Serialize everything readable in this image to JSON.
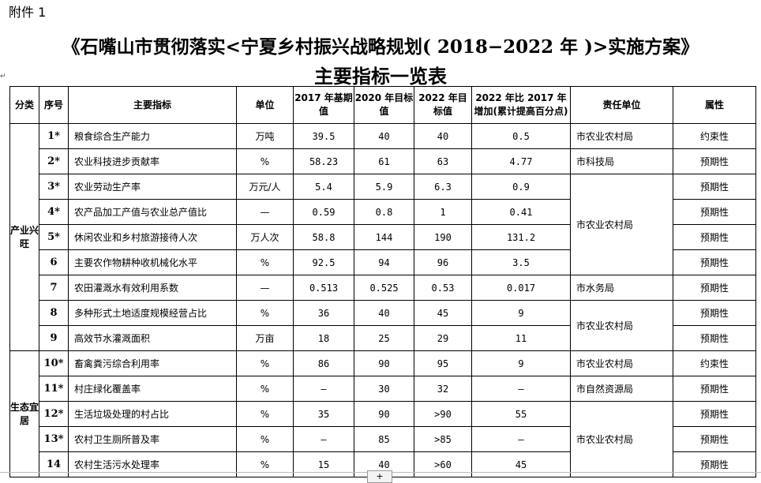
{
  "attachment": "附件 1",
  "title_line1": "《石嘴山市贯彻落实<宁夏乡村振兴战略规划( 2018−2022 年 )>实施方案》",
  "title_line2": "主要指标一览表",
  "headers": {
    "category": "分类",
    "seq": "序号",
    "indicator": "主要指标",
    "unit": "单位",
    "base2017": "2017 年基期值",
    "target2020": "2020 年目标值",
    "target2022": "2022 年目标值",
    "increase": "2022 年比 2017 年增加(累计提高百分点)",
    "dept": "责任单位",
    "attr": "属性"
  },
  "categories": [
    "产业兴旺",
    "生态宜居"
  ],
  "rows": [
    {
      "seq": "1*",
      "name": "粮食综合生产能力",
      "unit": "万吨",
      "v2017": "39.5",
      "v2020": "40",
      "v2022": "40",
      "inc": "0.5",
      "dept": "市农业农村局",
      "attr": "约束性"
    },
    {
      "seq": "2*",
      "name": "农业科技进步贡献率",
      "unit": "%",
      "v2017": "58.23",
      "v2020": "61",
      "v2022": "63",
      "inc": "4.77",
      "dept": "市科技局",
      "attr": "预期性"
    },
    {
      "seq": "3*",
      "name": "农业劳动生产率",
      "unit": "万元/人",
      "v2017": "5.4",
      "v2020": "5.9",
      "v2022": "6.3",
      "inc": "0.9",
      "dept": "市农业农村局",
      "attr": "预期性"
    },
    {
      "seq": "4*",
      "name": "农产品加工产值与农业总产值比",
      "unit": "—",
      "v2017": "0.59",
      "v2020": "0.8",
      "v2022": "1",
      "inc": "0.41",
      "dept": "",
      "attr": "预期性"
    },
    {
      "seq": "5*",
      "name": "休闲农业和乡村旅游接待人次",
      "unit": "万人次",
      "v2017": "58.8",
      "v2020": "144",
      "v2022": "190",
      "inc": "131.2",
      "dept": "",
      "attr": "预期性"
    },
    {
      "seq": "6",
      "name": "主要农作物耕种收机械化水平",
      "unit": "%",
      "v2017": "92.5",
      "v2020": "94",
      "v2022": "96",
      "inc": "3.5",
      "dept": "",
      "attr": "预期性"
    },
    {
      "seq": "7",
      "name": "农田灌溉水有效利用系数",
      "unit": "—",
      "v2017": "0.513",
      "v2020": "0.525",
      "v2022": "0.53",
      "inc": "0.017",
      "dept": "市水务局",
      "attr": "预期性"
    },
    {
      "seq": "8",
      "name": "多种形式土地适度规模经营占比",
      "unit": "%",
      "v2017": "36",
      "v2020": "40",
      "v2022": "45",
      "inc": "9",
      "dept": "市农业农村局",
      "attr": "预期性"
    },
    {
      "seq": "9",
      "name": "高效节水灌溉面积",
      "unit": "万亩",
      "v2017": "18",
      "v2020": "25",
      "v2022": "29",
      "inc": "11",
      "dept": "",
      "attr": "预期性"
    },
    {
      "seq": "10*",
      "name": "畜禽粪污综合利用率",
      "unit": "%",
      "v2017": "86",
      "v2020": "90",
      "v2022": "95",
      "inc": "9",
      "dept": "市农业农村局",
      "attr": "约束性"
    },
    {
      "seq": "11*",
      "name": "村庄绿化覆盖率",
      "unit": "%",
      "v2017": "—",
      "v2020": "30",
      "v2022": "32",
      "inc": "—",
      "dept": "市自然资源局",
      "attr": "预期性"
    },
    {
      "seq": "12*",
      "name": "生活垃圾处理的村占比",
      "unit": "%",
      "v2017": "35",
      "v2020": "90",
      "v2022": ">90",
      "inc": "55",
      "dept": "市农业农村局",
      "attr": "预期性"
    },
    {
      "seq": "13*",
      "name": "农村卫生厕所普及率",
      "unit": "%",
      "v2017": "—",
      "v2020": "85",
      "v2022": ">85",
      "inc": "—",
      "dept": "",
      "attr": "预期性"
    },
    {
      "seq": "14",
      "name": "农村生活污水处理率",
      "unit": "%",
      "v2017": "15",
      "v2020": "40",
      "v2022": ">60",
      "inc": "45",
      "dept": "",
      "attr": "预期性"
    }
  ],
  "footer": {
    "button": "+"
  }
}
